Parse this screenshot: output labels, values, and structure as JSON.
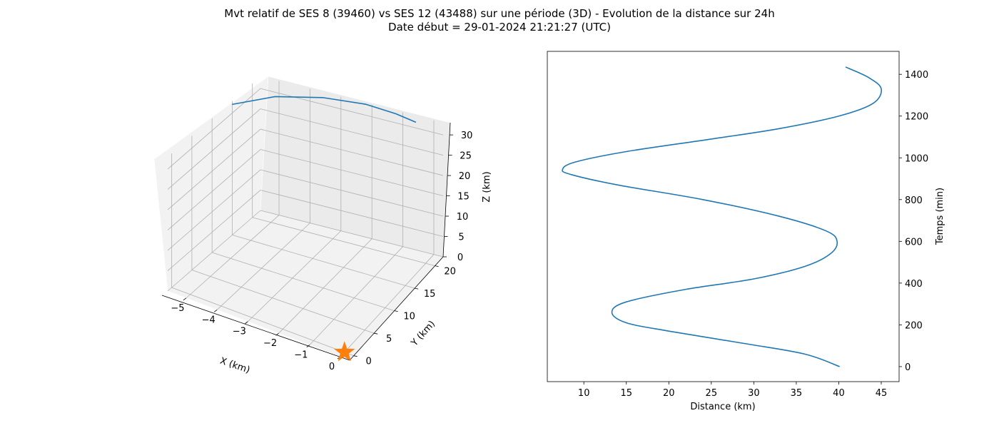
{
  "figure": {
    "title_line1": "Mvt relatif de SES 8 (39460) vs SES 12 (43488) sur une période (3D) - Evolution de la distance sur 24h",
    "title_line2": "Date début = 29-01-2024 21:21:27 (UTC)"
  },
  "chart_data": [
    {
      "type": "line",
      "projection": "3d",
      "xlabel": "X (km)",
      "ylabel": "Y (km)",
      "zlabel": "Z (km)",
      "x_ticks": [
        -5,
        -4,
        -3,
        -2,
        -1,
        0
      ],
      "y_ticks": [
        0,
        5,
        10,
        15,
        20
      ],
      "z_ticks": [
        0,
        5,
        10,
        15,
        20,
        25,
        30
      ],
      "xlim": [
        -5.6,
        0.3
      ],
      "ylim": [
        -1,
        22
      ],
      "zlim": [
        0,
        33
      ],
      "grid": true,
      "series": [
        {
          "color": "#1f77b4",
          "points": [
            [
              -5.8,
              16.5,
              30.4
            ],
            [
              -4.8,
              19.5,
              31.8
            ],
            [
              -3.5,
              21.3,
              32.5
            ],
            [
              -2.2,
              22.0,
              32.7
            ],
            [
              -1.2,
              21.8,
              32.5
            ],
            [
              -0.5,
              21.4,
              32.2
            ]
          ]
        },
        {
          "marker": "star",
          "color": "#ff7f0e",
          "points": [
            [
              0,
              0,
              0
            ]
          ]
        }
      ]
    },
    {
      "type": "line",
      "xlabel": "Distance (km)",
      "ylabel": "Temps (min)",
      "x_ticks": [
        10,
        15,
        20,
        25,
        30,
        35,
        40,
        45
      ],
      "y_ticks": [
        0,
        200,
        400,
        600,
        800,
        1000,
        1200,
        1400
      ],
      "xlim": [
        5.7,
        47.1
      ],
      "ylim": [
        -72,
        1510
      ],
      "y_axis_side": "right",
      "grid": false,
      "series": [
        {
          "color": "#1f77b4",
          "points": [
            [
              40.1,
              0
            ],
            [
              36.0,
              60
            ],
            [
              29.0,
              110
            ],
            [
              20.0,
              170
            ],
            [
              15.0,
              210
            ],
            [
              13.3,
              260
            ],
            [
              15.0,
              310
            ],
            [
              22.0,
              370
            ],
            [
              30.0,
              420
            ],
            [
              36.0,
              480
            ],
            [
              39.0,
              540
            ],
            [
              39.8,
              600
            ],
            [
              38.5,
              650
            ],
            [
              33.0,
              720
            ],
            [
              24.0,
              800
            ],
            [
              14.0,
              870
            ],
            [
              8.5,
              920
            ],
            [
              7.5,
              945
            ],
            [
              9.0,
              980
            ],
            [
              15.0,
              1030
            ],
            [
              25.0,
              1090
            ],
            [
              33.0,
              1140
            ],
            [
              40.0,
              1200
            ],
            [
              44.0,
              1260
            ],
            [
              45.0,
              1330
            ],
            [
              43.5,
              1385
            ],
            [
              40.8,
              1435
            ]
          ]
        }
      ]
    }
  ]
}
